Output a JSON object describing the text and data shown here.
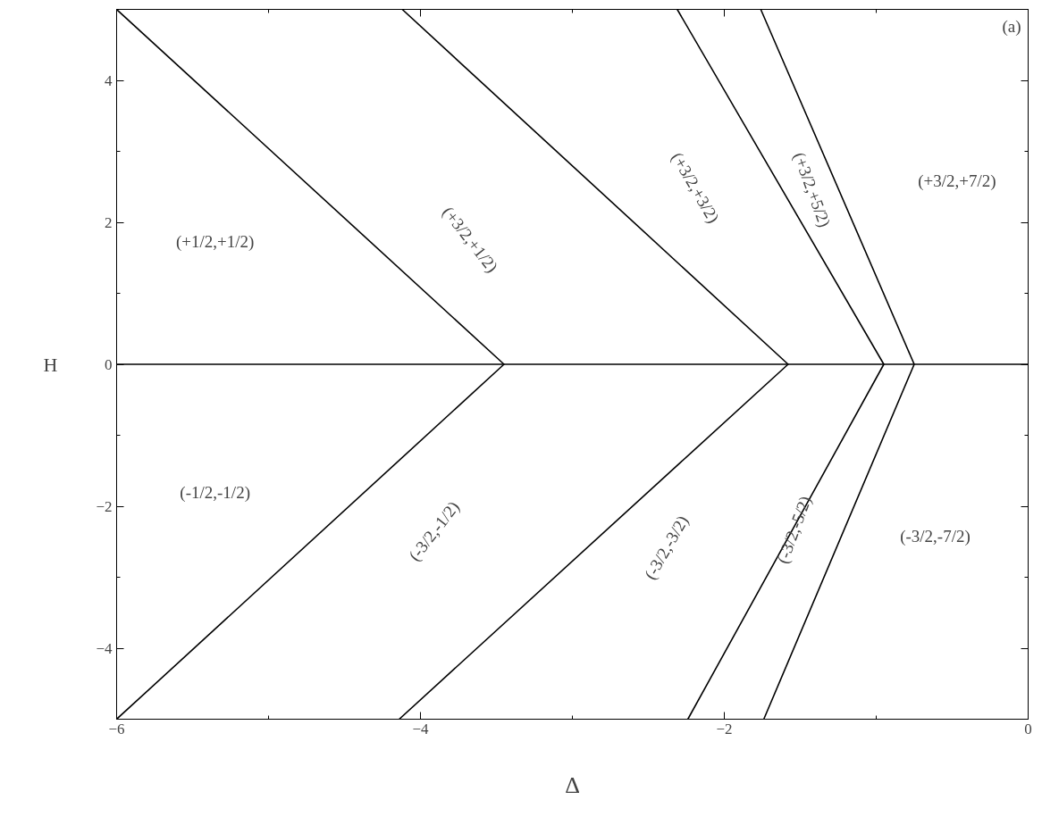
{
  "chart_data": {
    "type": "line",
    "xlabel": "Δ",
    "ylabel": "H",
    "xlim": [
      -6,
      0
    ],
    "ylim": [
      -5,
      5
    ],
    "xticks": [
      -6,
      -4,
      -2,
      0
    ],
    "yticks": [
      -4,
      -2,
      0,
      2,
      4
    ],
    "grid": false,
    "marker": "none",
    "line_style": "solid",
    "series": [
      {
        "color": "#000000",
        "x": [
          -6,
          -3.45,
          -6
        ],
        "values": [
          5,
          0,
          -5
        ]
      },
      {
        "color": "#000000",
        "x": [
          -4.12,
          -1.58,
          -4.14
        ],
        "values": [
          5,
          0,
          -5
        ]
      },
      {
        "color": "#000000",
        "x": [
          -2.31,
          -0.95,
          -2.24
        ],
        "values": [
          5,
          0,
          -5
        ]
      },
      {
        "color": "#000000",
        "x": [
          -1.76,
          -0.75,
          -1.74
        ],
        "values": [
          5,
          0,
          -5
        ]
      },
      {
        "color": "#000000",
        "x": [
          -6,
          0
        ],
        "values": [
          0,
          0
        ]
      }
    ],
    "annotations": [
      "(+1/2,+1/2)",
      "(+3/2,+1/2)",
      "(+3/2,+3/2)",
      "(+3/2,+5/2)",
      "(+3/2,+7/2)",
      "(-1/2,-1/2)",
      "(-3/2,-1/2)",
      "(-3/2,-3/2)",
      "(-3/2,-5/2)",
      "(-3/2,-7/2)",
      "(a)"
    ]
  }
}
